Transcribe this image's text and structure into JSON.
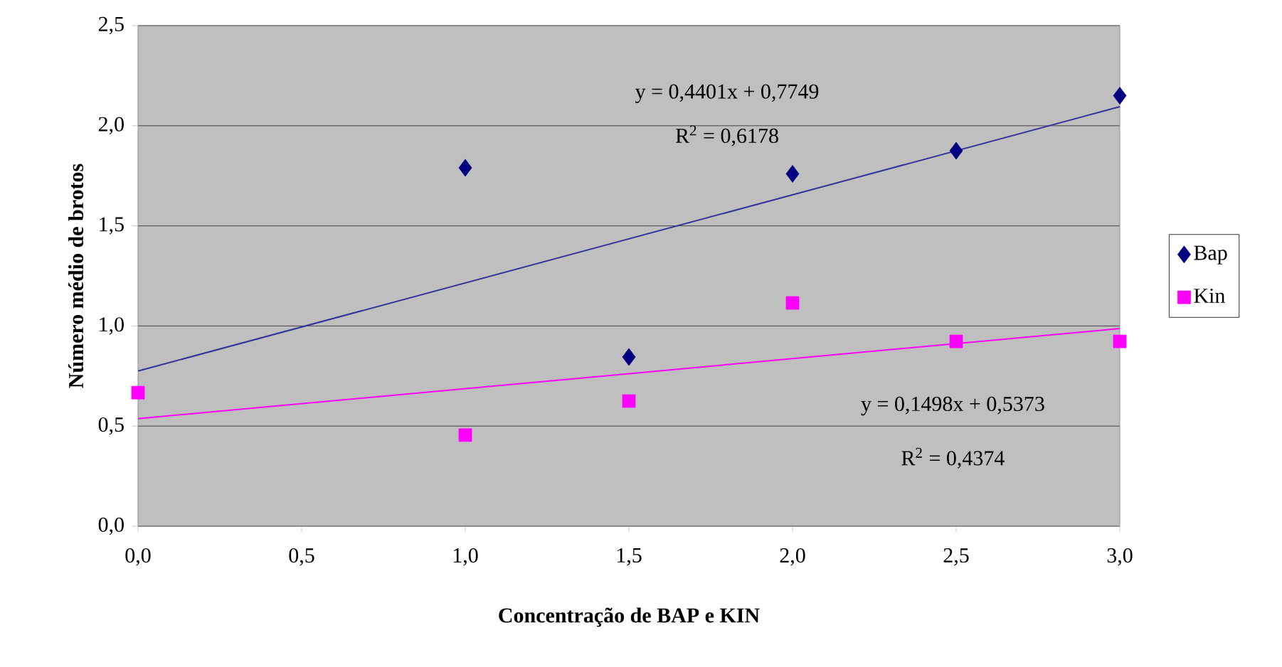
{
  "chart_data": {
    "type": "scatter",
    "xlabel": "Concentração de BAP e KIN",
    "ylabel": "Número médio de brotos",
    "xlim": [
      0,
      3
    ],
    "ylim": [
      0,
      2.5
    ],
    "xticks": [
      {
        "value": 0,
        "label": "0,0"
      },
      {
        "value": 0.5,
        "label": "0,5"
      },
      {
        "value": 1,
        "label": "1,0"
      },
      {
        "value": 1.5,
        "label": "1,5"
      },
      {
        "value": 2,
        "label": "2,0"
      },
      {
        "value": 2.5,
        "label": "2,5"
      },
      {
        "value": 3,
        "label": "3,0"
      }
    ],
    "yticks": [
      {
        "value": 0,
        "label": "0,0"
      },
      {
        "value": 0.5,
        "label": "0,5"
      },
      {
        "value": 1,
        "label": "1,0"
      },
      {
        "value": 1.5,
        "label": "1,5"
      },
      {
        "value": 2,
        "label": "2,0"
      },
      {
        "value": 2.5,
        "label": "2,5"
      }
    ],
    "grid": "y",
    "legend": "right",
    "line_style": "solid",
    "series": [
      {
        "name": "Bap",
        "color": "#000080",
        "marker": "diamond",
        "x": [
          1,
          1.5,
          2,
          2.5,
          3
        ],
        "values": [
          1.79,
          0.845,
          1.76,
          1.875,
          2.15
        ]
      },
      {
        "name": "Kin",
        "color": "#ff00ff",
        "marker": "square",
        "x": [
          0,
          1,
          1.5,
          2,
          2.5,
          3
        ],
        "values": [
          0.667,
          0.455,
          0.625,
          1.115,
          0.923,
          0.923
        ]
      },
      {
        "type": "line",
        "color": "#333399",
        "marker": "none",
        "x": [
          0,
          3
        ],
        "values": [
          0.775,
          2.095
        ]
      },
      {
        "type": "line",
        "color": "#ff00ff",
        "marker": "none",
        "x": [
          0,
          3
        ],
        "values": [
          0.537,
          0.987
        ]
      }
    ],
    "annotations": [
      "y = 0,4401x + 0,7749",
      "R$^{2}$ = 0,6178",
      "y = 0,1498x + 0,5373",
      "R$^{2}$ = 0,4374"
    ]
  }
}
